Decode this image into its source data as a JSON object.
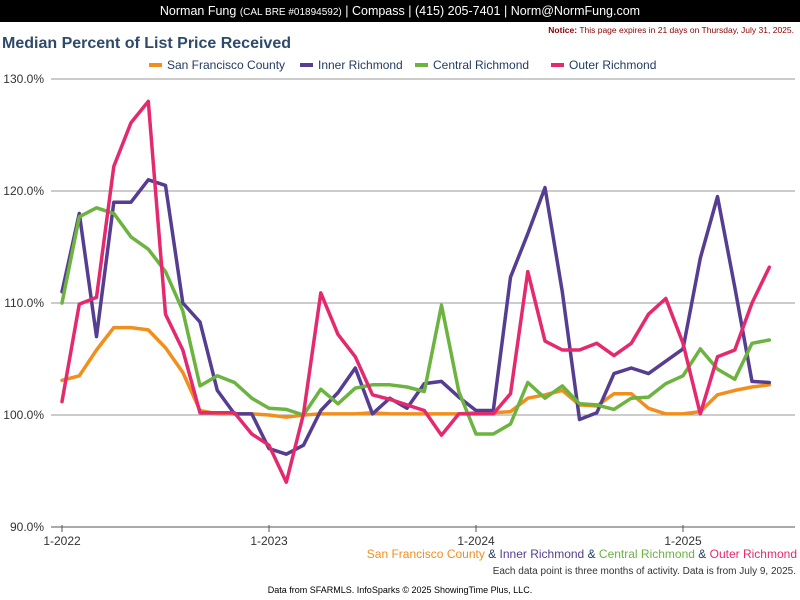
{
  "header": {
    "agent_name": "Norman Fung",
    "license": "(CAL BRE #01894592)",
    "company": "Compass",
    "phone": "(415) 205-7401",
    "email": "Norm@NormFung.com"
  },
  "notice": {
    "label": "Notice:",
    "text": "This page expires in 21 days on Thursday, July 31, 2025."
  },
  "footer": {
    "note": "Each data point is three months of activity. Data is from July 9, 2025.",
    "credit": "Data from SFARMLS. InfoSparks © 2025 ShowingTime Plus, LLC.",
    "separator": "&"
  },
  "colors": {
    "san_francisco": "#f28e1c",
    "inner_richmond": "#553d91",
    "central_richmond": "#6cb33f",
    "outer_richmond": "#e5296f",
    "title": "#2e4a6b",
    "gridline": "#999999"
  },
  "chart_data": {
    "type": "line",
    "title": "Median Percent of List Price Received",
    "ylim": [
      90,
      130
    ],
    "y_ticks": [
      90,
      100,
      110,
      120,
      130
    ],
    "y_tick_labels": [
      "90.0%",
      "100.0%",
      "110.0%",
      "120.0%",
      "130.0%"
    ],
    "x_tick_labels": [
      "1-2022",
      "1-2023",
      "1-2024",
      "1-2025"
    ],
    "x_tick_months": [
      0,
      12,
      24,
      36
    ],
    "x_months": [
      0,
      1,
      2,
      3,
      4,
      5,
      6,
      7,
      8,
      9,
      10,
      11,
      12,
      13,
      14,
      15,
      16,
      17,
      18,
      19,
      20,
      21,
      22,
      23,
      24,
      25,
      26,
      27,
      28,
      29,
      30,
      31,
      32,
      33,
      34,
      35,
      36,
      37,
      38,
      39,
      40,
      41
    ],
    "grid": "horizontal",
    "legend_position": "top",
    "series": [
      {
        "name": "San Francisco County",
        "color": "#f28e1c",
        "values": [
          103.1,
          103.5,
          105.8,
          107.8,
          107.8,
          107.6,
          106.0,
          103.8,
          100.4,
          100.1,
          100.1,
          100.1,
          100.0,
          99.8,
          100.0,
          100.1,
          100.1,
          100.1,
          100.2,
          100.1,
          100.1,
          100.1,
          100.1,
          100.1,
          100.2,
          100.2,
          100.3,
          101.5,
          101.8,
          102.2,
          100.9,
          100.8,
          101.9,
          101.9,
          100.6,
          100.1,
          100.1,
          100.3,
          101.8,
          102.2,
          102.5,
          102.7
        ]
      },
      {
        "name": "Inner Richmond",
        "color": "#553d91",
        "values": [
          111.0,
          118.0,
          107.0,
          119.0,
          119.0,
          121.0,
          120.5,
          110.0,
          108.3,
          102.2,
          100.1,
          100.1,
          97.0,
          96.5,
          97.3,
          100.4,
          102.0,
          104.2,
          100.1,
          101.5,
          100.6,
          102.8,
          103.0,
          101.6,
          100.4,
          100.4,
          112.3,
          116.2,
          120.3,
          111.0,
          99.6,
          100.2,
          103.7,
          104.2,
          103.7,
          104.8,
          105.9,
          114.0,
          119.5,
          111.4,
          103.0,
          102.9
        ]
      },
      {
        "name": "Central Richmond",
        "color": "#6cb33f",
        "values": [
          110.0,
          117.7,
          118.5,
          118.0,
          115.9,
          114.8,
          112.8,
          109.3,
          102.6,
          103.5,
          102.9,
          101.5,
          100.6,
          100.5,
          100.0,
          102.3,
          101.0,
          102.4,
          102.7,
          102.7,
          102.5,
          102.1,
          109.8,
          102.1,
          98.3,
          98.3,
          99.2,
          102.9,
          101.5,
          102.6,
          101.0,
          100.9,
          100.5,
          101.5,
          101.6,
          102.8,
          103.5,
          105.9,
          104.1,
          103.2,
          106.4,
          106.7
        ]
      },
      {
        "name": "Outer Richmond",
        "color": "#e5296f",
        "values": [
          101.2,
          109.9,
          110.5,
          122.2,
          126.1,
          128.0,
          109.0,
          105.8,
          100.2,
          100.2,
          100.2,
          98.3,
          97.3,
          94.0,
          100.1,
          110.9,
          107.2,
          105.2,
          101.8,
          101.4,
          100.9,
          100.4,
          98.2,
          100.1,
          100.1,
          100.1,
          101.9,
          112.8,
          106.6,
          105.8,
          105.8,
          106.4,
          105.3,
          106.4,
          109.0,
          110.4,
          106.4,
          100.1,
          105.2,
          105.8,
          110.0,
          113.2
        ]
      }
    ]
  }
}
